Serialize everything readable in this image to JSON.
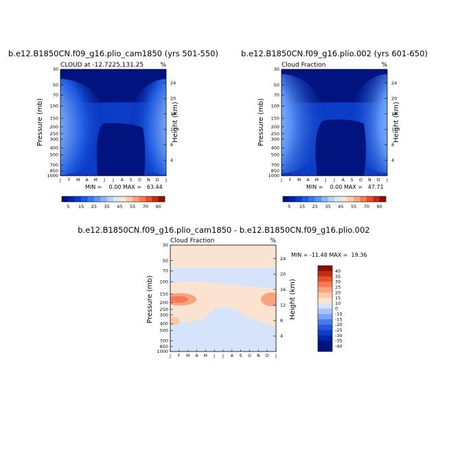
{
  "colors": {
    "cf_palette": [
      "#00137f",
      "#0024a6",
      "#0b3dc7",
      "#1e5ae0",
      "#3b78ef",
      "#5d95f5",
      "#8cb4f8",
      "#b6d1fa",
      "#dbe8fb",
      "#fbe6d6",
      "#fccbb1",
      "#fba37f",
      "#f67a55",
      "#e4512c",
      "#c22c14",
      "#8c1002"
    ],
    "diff_palette": [
      "#00137f",
      "#0024a6",
      "#0b3dc7",
      "#2557dc",
      "#4a7bec",
      "#7aa2f4",
      "#a8c5f8",
      "#d5e4fb",
      "#fbe3d2",
      "#fcc8ab",
      "#fba37f",
      "#f67a55",
      "#e4512c",
      "#c22c14",
      "#8c1002"
    ]
  },
  "chart_data": [
    {
      "type": "contour",
      "title": "b.e12.B1850CN.f09_g16.plio_cam1850 (yrs 501-550)",
      "subtitle": "CLOUD at -12.7225,131.25",
      "units": "%",
      "xlabel": "",
      "ylabel": "Pressure (mb)",
      "ylabel_right": "Height (km)",
      "months": [
        "J",
        "F",
        "M",
        "A",
        "M",
        "J",
        "J",
        "A",
        "S",
        "O",
        "N",
        "D",
        "J"
      ],
      "pressure_ticks": [
        "30",
        "50",
        "70",
        "100",
        "150",
        "200",
        "250",
        "300",
        "400",
        "500",
        "700",
        "850",
        "1000"
      ],
      "height_ticks": [
        "24",
        "20",
        "16",
        "12",
        "8",
        "4"
      ],
      "stats": "MIN =    0.00 MAX =   63.44",
      "min": 0.0,
      "max": 63.44
    },
    {
      "type": "contour",
      "title": "b.e12.B1850CN.f09_g16.plio.002 (yrs 601-650)",
      "subtitle": "Cloud Fraction",
      "units": "%",
      "xlabel": "",
      "ylabel": "Pressure (mb)",
      "ylabel_right": "Height (km)",
      "months": [
        "J",
        "F",
        "M",
        "A",
        "M",
        "J",
        "J",
        "A",
        "S",
        "O",
        "N",
        "D",
        "J"
      ],
      "pressure_ticks": [
        "30",
        "50",
        "70",
        "100",
        "150",
        "200",
        "250",
        "300",
        "400",
        "500",
        "700",
        "850",
        "1000"
      ],
      "height_ticks": [
        "24",
        "20",
        "16",
        "12",
        "8",
        "4"
      ],
      "stats": "MIN =    0.00 MAX =   47.71",
      "min": 0.0,
      "max": 47.71
    },
    {
      "type": "contour",
      "title": "b.e12.B1850CN.f09_g16.plio_cam1850 - b.e12.B1850CN.f09_g16.plio.002",
      "subtitle": "Cloud Fraction",
      "units": "%",
      "xlabel": "",
      "ylabel": "Pressure (mb)",
      "ylabel_right": "Height (km)",
      "months": [
        "J",
        "F",
        "M",
        "A",
        "M",
        "J",
        "J",
        "A",
        "S",
        "O",
        "N",
        "D",
        "J"
      ],
      "pressure_ticks": [
        "30",
        "50",
        "70",
        "100",
        "150",
        "200",
        "250",
        "300",
        "400",
        "500",
        "700",
        "850",
        "1000"
      ],
      "height_ticks": [
        "24",
        "20",
        "16",
        "12",
        "8",
        "4"
      ],
      "stats": "MIN = -11.48 MAX =  19.36",
      "min": -11.48,
      "max": 19.36
    }
  ],
  "colorbar_cf": {
    "orientation": "horizontal",
    "labels": [
      "5",
      "15",
      "25",
      "35",
      "45",
      "55",
      "70",
      "90"
    ]
  },
  "colorbar_diff": {
    "orientation": "vertical",
    "labels": [
      "40",
      "35",
      "30",
      "25",
      "20",
      "15",
      "10",
      "0",
      "-10",
      "-15",
      "-20",
      "-25",
      "-30",
      "-35",
      "-40"
    ]
  }
}
